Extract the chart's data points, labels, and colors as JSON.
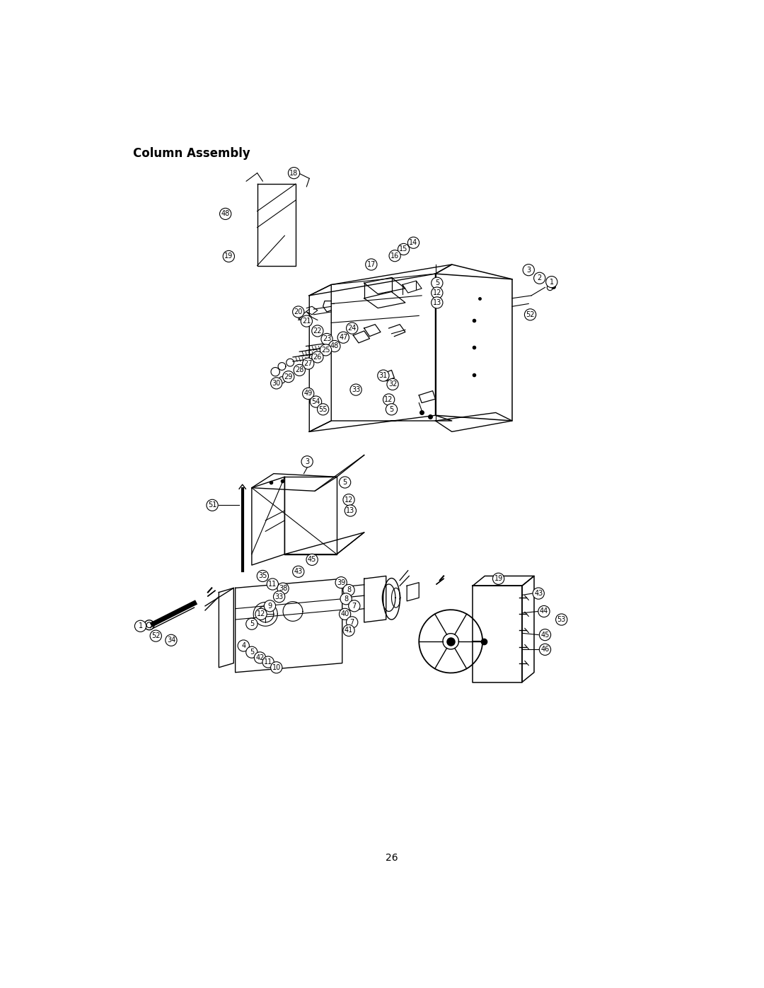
{
  "title": "Column Assembly",
  "page_number": "26",
  "background_color": "#ffffff",
  "title_fontsize": 12,
  "page_num_fontsize": 10,
  "fig_width": 10.8,
  "fig_height": 13.97,
  "label_fontsize": 7.0,
  "label_circle_r": 10.5
}
